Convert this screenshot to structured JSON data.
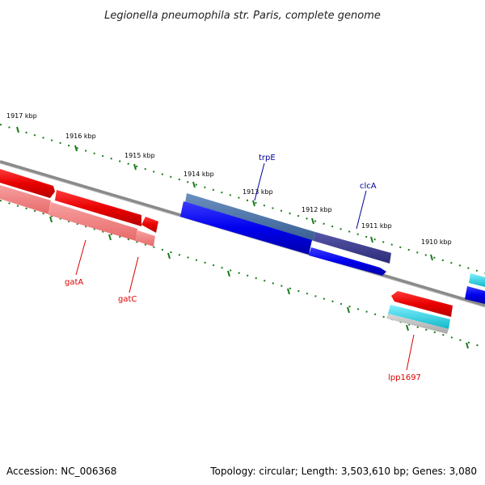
{
  "title": "Legionella pneumophila str. Paris, complete genome",
  "footer": {
    "accession": "Accession: NC_006368",
    "summary": "Topology: circular; Length: 3,503,610 bp; Genes: 3,080"
  },
  "ruler": {
    "unit": "kbp",
    "ticks": [
      {
        "label": "1917 kbp"
      },
      {
        "label": "1916 kbp"
      },
      {
        "label": "1915 kbp"
      },
      {
        "label": "1914 kbp"
      },
      {
        "label": "1913 kbp"
      },
      {
        "label": "1912 kbp"
      },
      {
        "label": "1911 kbp"
      },
      {
        "label": "1910 kbp"
      }
    ]
  },
  "genes": [
    {
      "name": "gatA",
      "color": "#dd0000"
    },
    {
      "name": "gatC",
      "color": "#dd0000"
    },
    {
      "name": "trpE",
      "color": "#000099"
    },
    {
      "name": "clcA",
      "color": "#000099"
    },
    {
      "name": "lpp1697",
      "color": "#dd0000"
    }
  ],
  "colors": {
    "backbone": "#777777",
    "ruler": "#1a7a1a",
    "forward_cds": "#ee1111",
    "forward_gene": "#f07b7b",
    "reverse_cds": "#1111ee",
    "reverse_gene": "#3a3ab8",
    "rna": "#22c8d8"
  }
}
